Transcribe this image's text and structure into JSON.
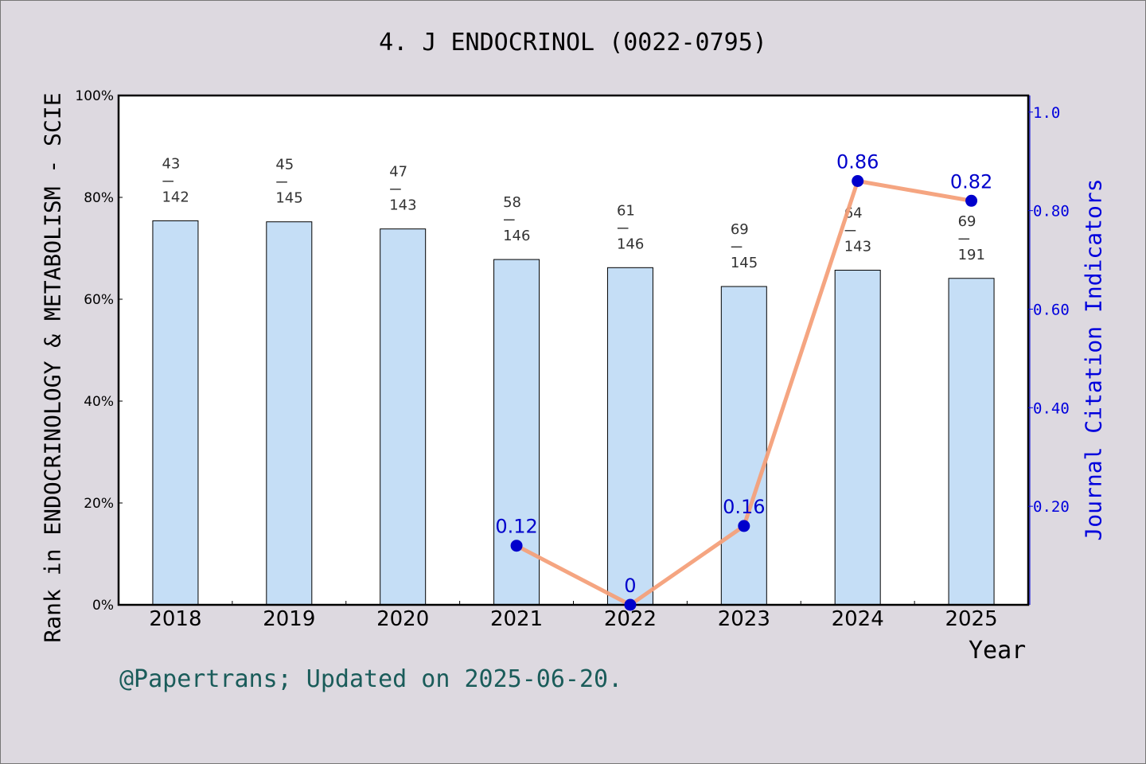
{
  "chart_data": {
    "type": "bar",
    "title": "4. J ENDOCRINOL (0022-0795)",
    "xlabel": "Year",
    "ylabel": "Rank in ENDOCRINOLOGY & METABOLISM - SCIE",
    "ylabel_right": "Journal Citation Indicators",
    "categories": [
      "2018",
      "2019",
      "2020",
      "2021",
      "2022",
      "2023",
      "2024",
      "2025"
    ],
    "ylim": [
      0,
      100
    ],
    "yticks": [
      "0%",
      "20%",
      "40%",
      "60%",
      "80%",
      "100%"
    ],
    "ylim_right": [
      0,
      1.0336
    ],
    "yticks_right": [
      "0.20",
      "0.40",
      "0.60",
      "0.80",
      "1.0"
    ],
    "grid": false,
    "series": [
      {
        "type": "bar",
        "values": [
          75.4,
          75.2,
          73.8,
          67.8,
          66.2,
          62.5,
          65.7,
          64.1
        ],
        "color": "#c5def6",
        "rank_labels": [
          {
            "rank": "43",
            "total": "142"
          },
          {
            "rank": "45",
            "total": "145"
          },
          {
            "rank": "47",
            "total": "143"
          },
          {
            "rank": "58",
            "total": "146"
          },
          {
            "rank": "61",
            "total": "146"
          },
          {
            "rank": "69",
            "total": "145"
          },
          {
            "rank": "64",
            "total": "143"
          },
          {
            "rank": "69",
            "total": "191"
          }
        ],
        "divider_text": "---"
      },
      {
        "type": "line",
        "axis": "right",
        "x": [
          "2021",
          "2022",
          "2023",
          "2024",
          "2025"
        ],
        "values": [
          0.12,
          0,
          0.16,
          0.86,
          0.82
        ],
        "labels": [
          "0.12",
          "0",
          "0.16",
          "0.86",
          "0.82"
        ],
        "line_color": "#f4a07a",
        "marker_color": "#0000cc",
        "label_color": "#0000cc"
      }
    ]
  },
  "footer": "@Papertrans; Updated on 2025-06-20."
}
